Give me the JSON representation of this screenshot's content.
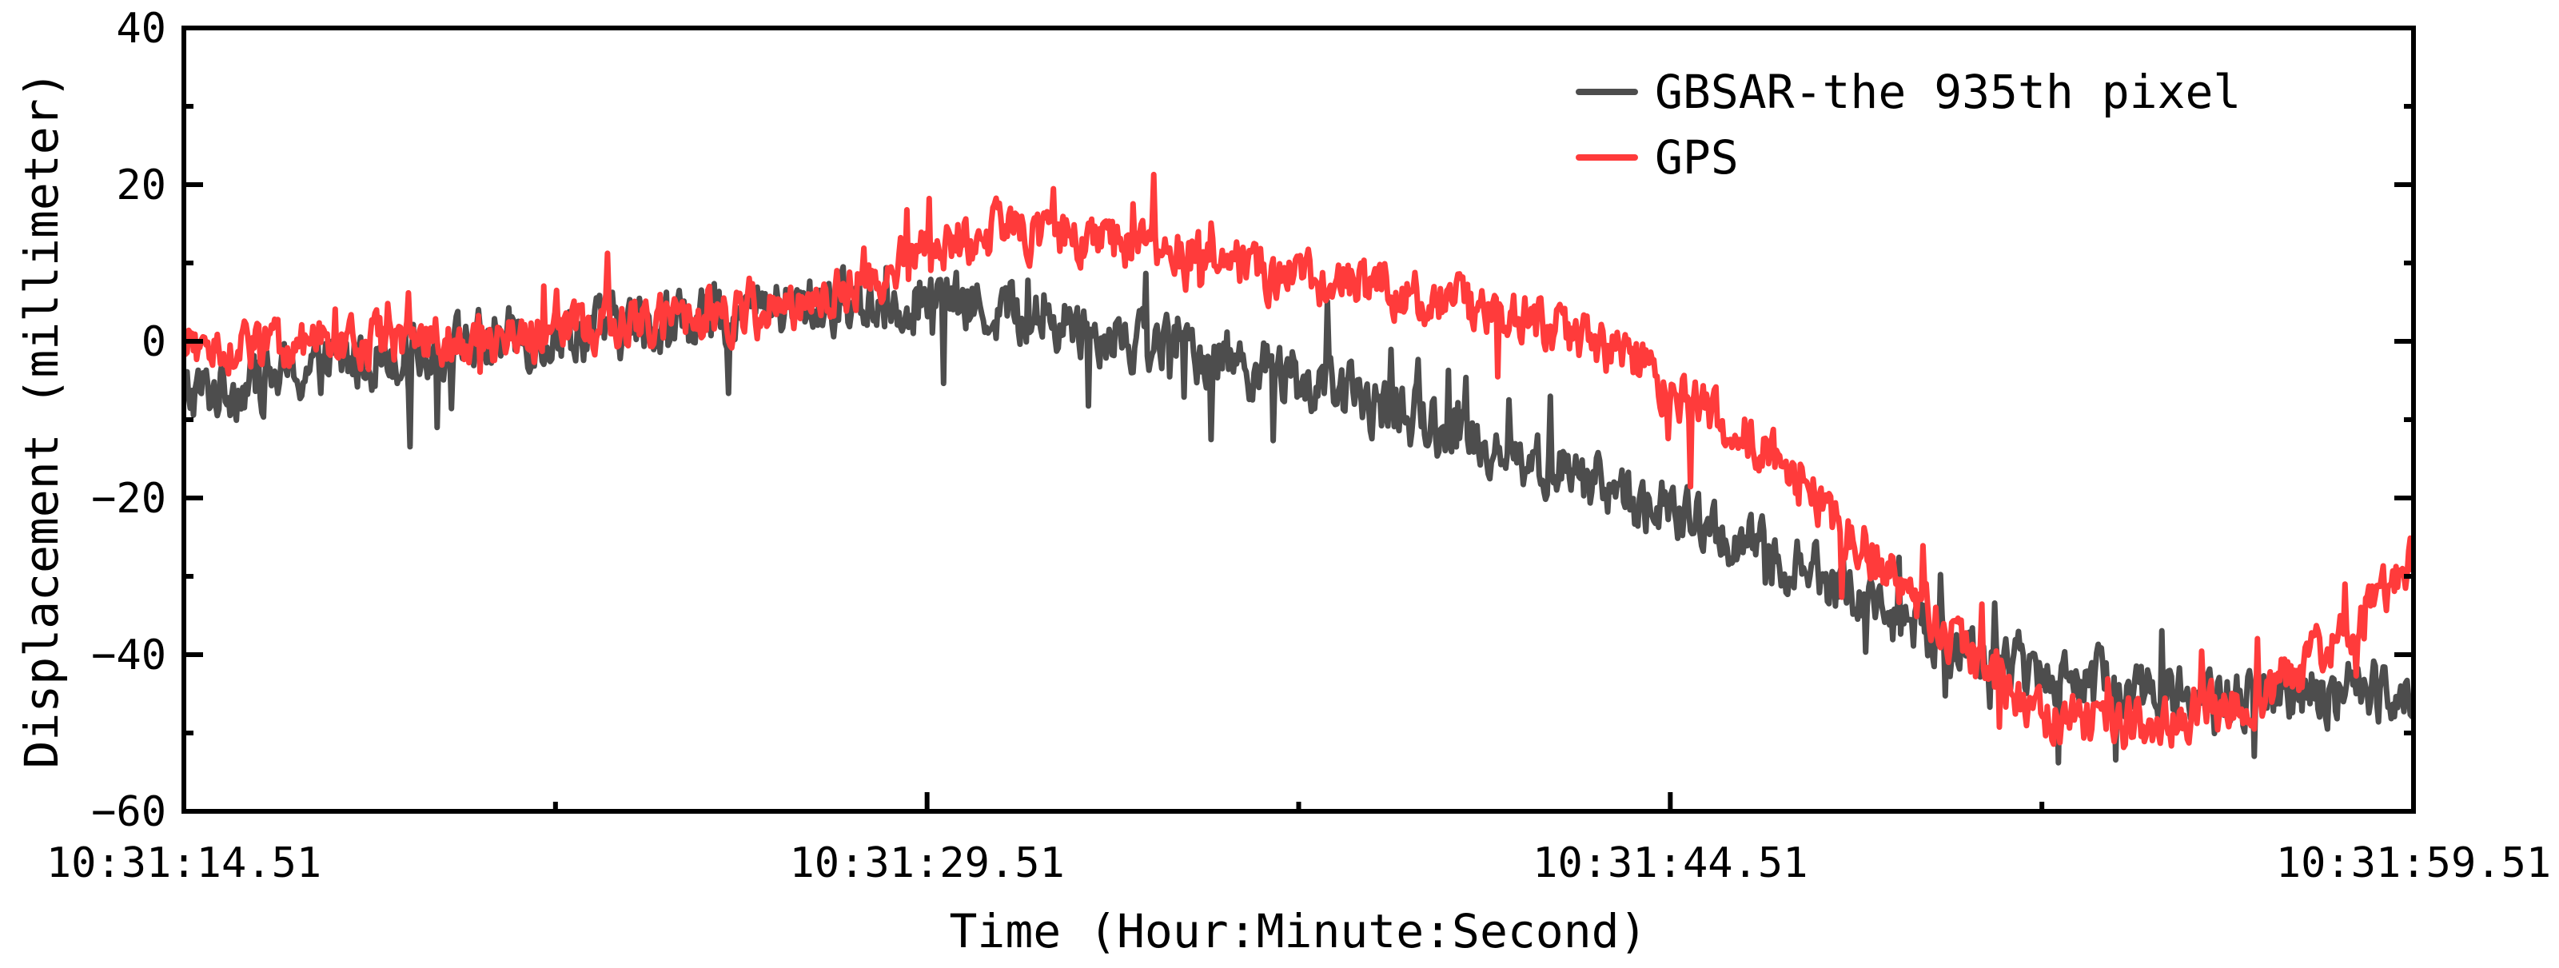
{
  "chart_data": {
    "type": "line",
    "title": "",
    "xlabel": "Time (Hour:Minute:Second)",
    "ylabel": "Displacement (millimeter)",
    "ylim": [
      -60,
      40
    ],
    "yticks": [
      -60,
      -40,
      -20,
      0,
      20,
      40
    ],
    "ytick_labels": [
      "−60",
      "−40",
      "−20",
      "0",
      "20",
      "40"
    ],
    "xlim_seconds": [
      0,
      45
    ],
    "xticks_seconds": [
      0,
      15,
      30,
      45
    ],
    "xtick_labels": [
      "10:31:14.51",
      "10:31:29.51",
      "10:31:44.51",
      "10:31:59.51"
    ],
    "x_minor_ticks_seconds": [
      7.5,
      22.5,
      37.5
    ],
    "grid": false,
    "legend_position": "upper right",
    "x_trend_seconds": [
      0,
      1.5,
      3,
      4.5,
      6,
      7.5,
      9,
      10.5,
      12,
      13.5,
      15,
      16.5,
      18,
      19.5,
      21,
      22.5,
      24,
      25.5,
      27,
      28.5,
      30,
      31.5,
      33,
      34.5,
      36,
      37.5,
      39,
      40.5,
      42,
      43.5,
      45
    ],
    "series": [
      {
        "name": "GBSAR-the 935th pixel",
        "color": "#4d4d4d",
        "noise_amplitude_mm": 6,
        "values": [
          -7,
          -5,
          -3,
          -1,
          0,
          1,
          2,
          3,
          4,
          5,
          5,
          4,
          2,
          0,
          -2,
          -5,
          -8,
          -11,
          -15,
          -18,
          -22,
          -26,
          -30,
          -35,
          -40,
          -42,
          -44,
          -45,
          -46,
          -45,
          -44
        ]
      },
      {
        "name": "GPS",
        "color": "#ff3b3b",
        "noise_amplitude_mm": 5,
        "values": [
          -1,
          -1,
          0,
          0,
          0,
          1,
          2,
          3,
          4,
          7,
          12,
          14,
          13,
          12,
          10,
          8,
          7,
          5,
          3,
          0,
          -6,
          -12,
          -20,
          -30,
          -40,
          -48,
          -49,
          -48,
          -45,
          -38,
          -28
        ]
      }
    ]
  },
  "legend": {
    "items": [
      {
        "label": "GBSAR-the 935th pixel"
      },
      {
        "label": "GPS"
      }
    ]
  }
}
